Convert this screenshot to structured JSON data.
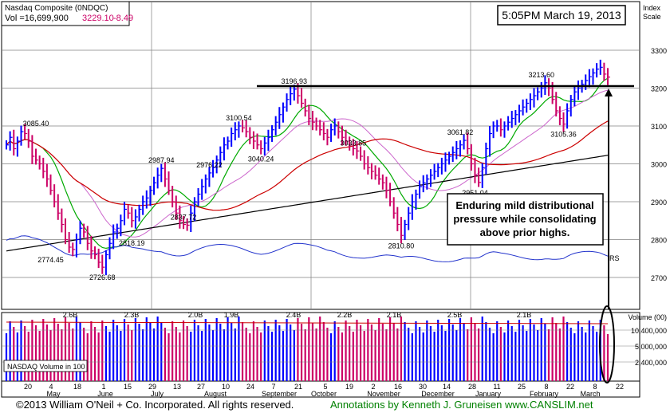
{
  "header": {
    "title": "Nasdaq Composite  (0NDQC)",
    "volume_label": "Vol =16,699,900",
    "price": "3229.10",
    "change": "-8.49",
    "timestamp": "5:05PM March 19, 2013",
    "index_scale_label": [
      "Index",
      "Scale"
    ]
  },
  "colors": {
    "up_bar": "#0000ff",
    "down_bar": "#cc0066",
    "ma_50": "#cc0000",
    "ma_200": "#000000",
    "ma_10": "#00aa00",
    "ma_21": "#cc66cc",
    "rs_line": "#2233cc",
    "grid": "#808080",
    "annotation_text": "#008000"
  },
  "chart_data": {
    "type": "candlestick-ohlc",
    "price_axis": {
      "ticks": [
        2700,
        2800,
        2900,
        3000,
        3100,
        3200,
        3300
      ],
      "ylim": [
        2640,
        3360
      ]
    },
    "volume_axis": {
      "label": "Volume (00)",
      "ticks": [
        "10,400,000",
        "5,000,000",
        "2,400,000"
      ]
    },
    "volume_panel_label": "NASDAQ Volume in 100",
    "x_axis": {
      "day_ticks": [
        "20",
        "4",
        "18",
        "1",
        "15",
        "29",
        "13",
        "27",
        "10",
        "24",
        "7",
        "21",
        "5",
        "19",
        "2",
        "16",
        "30",
        "14",
        "28",
        "11",
        "25",
        "8",
        "22",
        "8",
        "22"
      ],
      "month_labels": [
        "May",
        "June",
        "July",
        "August",
        "September",
        "October",
        "November",
        "December",
        "January",
        "February",
        "March"
      ]
    },
    "price_labels": [
      "3085.40",
      "2774.45",
      "2726.68",
      "2818.19",
      "2837.72",
      "2987.94",
      "2976.22",
      "3100.54",
      "3040.24",
      "3196.93",
      "3033.85",
      "2810.80",
      "3061.82",
      "2951.04",
      "3213.60",
      "3105.36"
    ],
    "volume_labels": [
      "2.6B",
      "2.3B",
      "2.0B",
      "1.9B",
      "2.4B",
      "2.2B",
      "2.1B",
      "2.5B",
      "2.1B"
    ],
    "rs_label": "RS",
    "series_close": [
      3050,
      3070,
      3040,
      3060,
      3085,
      3080,
      3060,
      3020,
      3010,
      3000,
      2980,
      2960,
      2930,
      2900,
      2870,
      2840,
      2800,
      2780,
      2774,
      2800,
      2830,
      2820,
      2790,
      2770,
      2760,
      2740,
      2727,
      2760,
      2790,
      2820,
      2830,
      2850,
      2880,
      2870,
      2850,
      2860,
      2880,
      2900,
      2910,
      2930,
      2950,
      2970,
      2988,
      2960,
      2930,
      2900,
      2870,
      2850,
      2840,
      2838,
      2870,
      2900,
      2920,
      2940,
      2960,
      2976,
      2990,
      3010,
      3030,
      3050,
      3060,
      3080,
      3090,
      3100,
      3095,
      3085,
      3070,
      3060,
      3050,
      3040,
      3055,
      3070,
      3090,
      3110,
      3130,
      3150,
      3170,
      3185,
      3197,
      3180,
      3160,
      3140,
      3120,
      3110,
      3100,
      3090,
      3080,
      3070,
      3090,
      3100,
      3085,
      3070,
      3060,
      3050,
      3040,
      3034,
      3020,
      3000,
      2990,
      2980,
      2970,
      2960,
      2950,
      2930,
      2900,
      2870,
      2840,
      2811,
      2840,
      2870,
      2900,
      2920,
      2940,
      2950,
      2960,
      2970,
      2980,
      2990,
      3000,
      3010,
      3020,
      3030,
      3040,
      3050,
      3062,
      3040,
      3000,
      2970,
      2951,
      2990,
      3040,
      3080,
      3100,
      3100,
      3090,
      3100,
      3110,
      3120,
      3130,
      3140,
      3150,
      3160,
      3170,
      3180,
      3190,
      3200,
      3214,
      3200,
      3170,
      3140,
      3120,
      3105,
      3140,
      3170,
      3190,
      3200,
      3210,
      3220,
      3230,
      3240,
      3250,
      3255,
      3237,
      3229
    ],
    "annotation": "Enduring mild distributional pressure while consolidating above prior highs."
  },
  "footer": {
    "copyright": "©2013 William O'Neil + Co. Incorporated. All rights reserved.",
    "annotations": "Annotations by Kenneth J. Gruneisen www.CANSLIM.net"
  }
}
